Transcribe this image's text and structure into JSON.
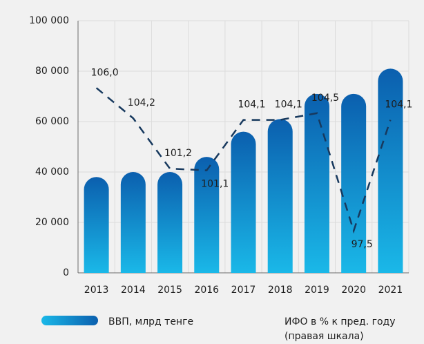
{
  "chart_data": {
    "type": "bar-line",
    "categories": [
      "2013",
      "2014",
      "2015",
      "2016",
      "2017",
      "2018",
      "2019",
      "2020",
      "2021"
    ],
    "series": [
      {
        "name": "ВВП, млрд тенге",
        "type": "bar",
        "color": "#0b5fae",
        "color2": "#1ab8e8",
        "values": [
          38000,
          40000,
          40000,
          46000,
          56000,
          61000,
          71000,
          71000,
          81000
        ]
      },
      {
        "name": "ИФО в % к пред. году (правая шкала)",
        "type": "line",
        "axis": "y2",
        "color": "#17395e",
        "values": [
          106.0,
          104.2,
          101.2,
          101.1,
          104.1,
          104.1,
          104.5,
          97.5,
          104.1
        ],
        "value_labels": [
          "106,0",
          "104,2",
          "101,2",
          "101,1",
          "104,1",
          "104,1",
          "104,5",
          "97,5",
          "104,1"
        ]
      }
    ],
    "ylim": [
      0,
      100000
    ],
    "yticks": [
      0,
      {
        "value": 20000,
        "label": "20 000"
      },
      {
        "value": 40000,
        "label": "40 000"
      },
      {
        "value": 60000,
        "label": "60 000"
      },
      {
        "value": 80000,
        "label": "80 000"
      },
      {
        "value": 100000,
        "label": "100 000"
      }
    ],
    "y2lim": [
      95,
      110
    ],
    "grid": true
  }
}
